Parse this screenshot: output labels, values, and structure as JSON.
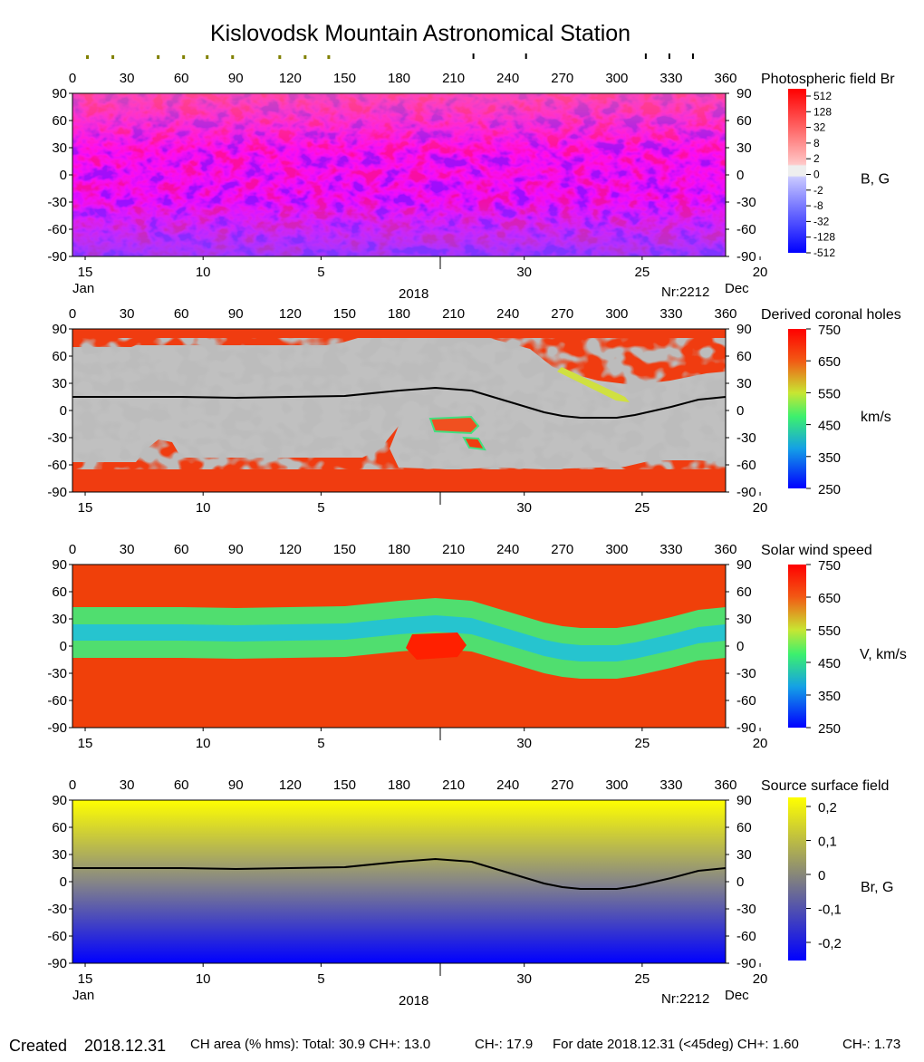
{
  "title": "Kislovodsk Mountain Astronomical Station",
  "footer": {
    "created_label": "Created",
    "created_date": "2018.12.31",
    "ch_area_text": "CH area (% hms): Total: 30.9 CH+: 13.0",
    "ch_minus_text": "CH-: 17.9",
    "for_date_text": "For date 2018.12.31 (<45deg) CH+: 1.60",
    "ch_minus_date_text": "CH-: 1.73"
  },
  "axes": {
    "lon_ticks": [
      0,
      30,
      60,
      90,
      120,
      150,
      180,
      210,
      240,
      270,
      300,
      330,
      360
    ],
    "lat_ticks": [
      90,
      60,
      30,
      0,
      -30,
      -60,
      -90
    ],
    "date_ticks": [
      {
        "label": "15",
        "lon": 27
      },
      {
        "label": "10",
        "lon": 92
      },
      {
        "label": "5",
        "lon": 157
      },
      {
        "label": "30",
        "lon": 269
      },
      {
        "label": "25",
        "lon": 334
      },
      {
        "label": "20",
        "lon": 399
      }
    ],
    "month_left": "Jan",
    "month_right": "Dec",
    "year": "2018",
    "carrington_rotation": "Nr:2212"
  },
  "top_markers": {
    "olive_lons": [
      8,
      22,
      47,
      61,
      74,
      88,
      114,
      128,
      141
    ],
    "black_lons": [
      221,
      250,
      316,
      329,
      342
    ]
  },
  "chart_data": [
    {
      "type": "heatmap",
      "title": "Photospheric field Br",
      "colorbar_label": "B, G",
      "colorbar_ticks": [
        "512",
        "128",
        "32",
        "8",
        "2",
        "0",
        "-2",
        "-8",
        "-32",
        "-128",
        "-512"
      ],
      "xlim": [
        0,
        360
      ],
      "ylim": [
        -90,
        90
      ],
      "colors": {
        "positive": "#ff0000",
        "negative": "#0000ff",
        "zero": "#eeeeee"
      }
    },
    {
      "type": "heatmap",
      "title": "Derived coronal holes",
      "colorbar_label": "km/s",
      "colorbar_ticks": [
        750,
        650,
        550,
        450,
        350,
        250
      ],
      "xlim": [
        0,
        360
      ],
      "ylim": [
        -90,
        90
      ],
      "neutral_line": {
        "x": [
          0,
          30,
          60,
          90,
          120,
          150,
          180,
          200,
          220,
          240,
          260,
          270,
          280,
          300,
          310,
          330,
          345,
          360
        ],
        "y": [
          15,
          15,
          15,
          14,
          15,
          16,
          22,
          25,
          22,
          10,
          -2,
          -6,
          -8,
          -8,
          -5,
          4,
          12,
          15
        ]
      }
    },
    {
      "type": "heatmap",
      "title": "Solar wind speed",
      "colorbar_label": "V, km/s",
      "colorbar_ticks": [
        750,
        650,
        550,
        450,
        350,
        250
      ],
      "xlim": [
        0,
        360
      ],
      "ylim": [
        -90,
        90
      ]
    },
    {
      "type": "heatmap",
      "title": "Source surface field",
      "colorbar_label": "Br, G",
      "colorbar_ticks": [
        "0,2",
        "0,1",
        "0",
        "-0,1",
        "-0,2"
      ],
      "xlim": [
        0,
        360
      ],
      "ylim": [
        -90,
        90
      ],
      "neutral_line": {
        "x": [
          0,
          30,
          60,
          90,
          120,
          150,
          180,
          200,
          220,
          240,
          260,
          270,
          280,
          300,
          310,
          330,
          345,
          360
        ],
        "y": [
          15,
          15,
          15,
          14,
          15,
          16,
          22,
          25,
          22,
          10,
          -2,
          -6,
          -8,
          -8,
          -5,
          4,
          12,
          15
        ]
      }
    }
  ]
}
